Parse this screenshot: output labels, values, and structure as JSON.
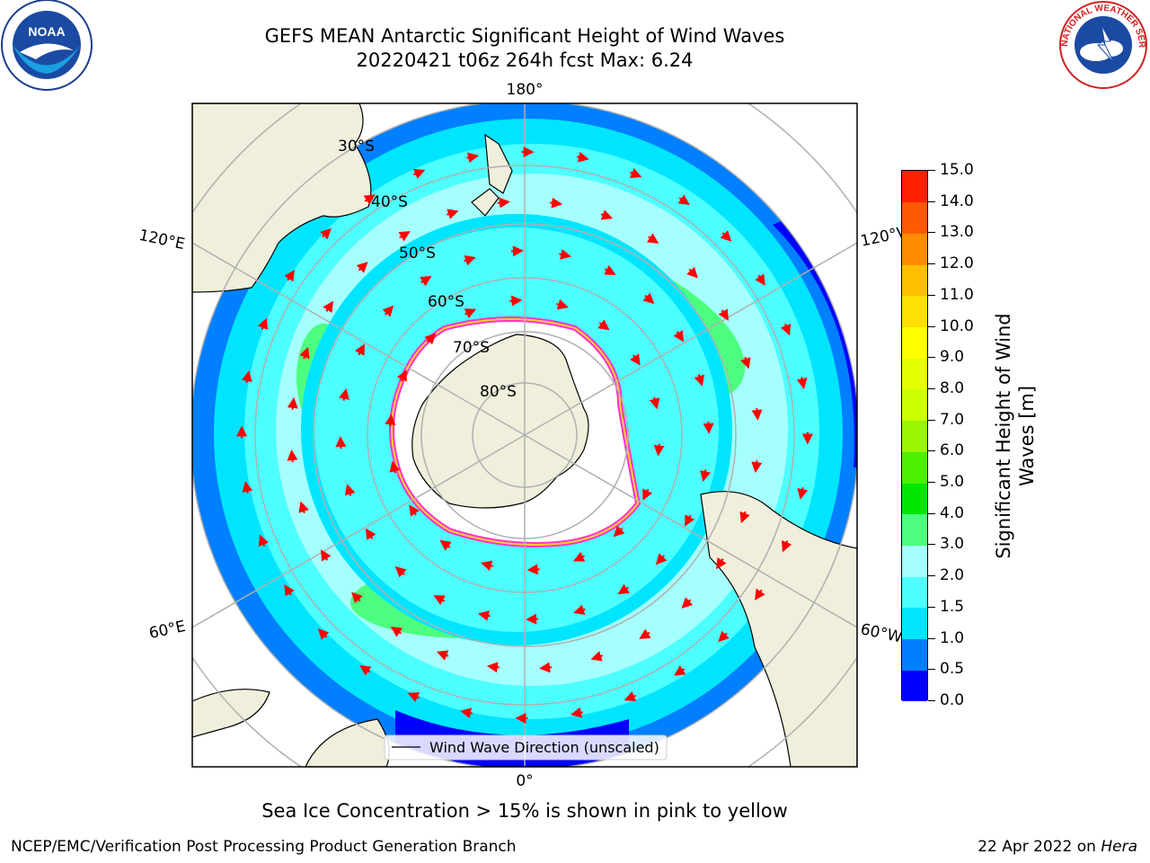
{
  "title": {
    "line1": "GEFS MEAN Antarctic Significant Height of Wind Waves",
    "line2": "20220421 t06z 264h fcst   Max: 6.24"
  },
  "map": {
    "lon_labels": {
      "top": "180°",
      "bottom": "0°",
      "left_upper": "120°E",
      "left_lower": "60°E",
      "right_upper": "120°W",
      "right_lower": "60°W"
    },
    "lat_labels": [
      "30°S",
      "40°S",
      "50°S",
      "60°S",
      "70°S",
      "80°S"
    ],
    "legend": "Wind Wave Direction (unscaled)"
  },
  "colorbar": {
    "title": "Significant Height of Wind\nWaves [m]",
    "title_line1": "Significant Height of Wind",
    "title_line2": "Waves [m]",
    "ticks": [
      "0.0",
      "0.5",
      "1.0",
      "1.5",
      "2.0",
      "3.0",
      "4.0",
      "5.0",
      "6.0",
      "7.0",
      "8.0",
      "9.0",
      "10.0",
      "11.0",
      "12.0",
      "13.0",
      "14.0",
      "15.0"
    ],
    "colors": [
      "#0000ff",
      "#007fff",
      "#00e5ff",
      "#4dffff",
      "#a6ffff",
      "#4dff7f",
      "#00e600",
      "#4cf000",
      "#99f500",
      "#ccff00",
      "#e6ff00",
      "#ffff00",
      "#ffe000",
      "#ffbf00",
      "#ff8c00",
      "#ff5a00",
      "#ff2000"
    ]
  },
  "footer": {
    "note": "Sea Ice Concentration > 15% is shown in pink to yellow",
    "left": "NCEP/EMC/Verification Post Processing Product Generation Branch",
    "right_date": "22 Apr 2022 on ",
    "right_host": "Hera"
  },
  "logos": {
    "noaa": "NOAA",
    "nws": "NATIONAL WEATHER SERVICE"
  }
}
